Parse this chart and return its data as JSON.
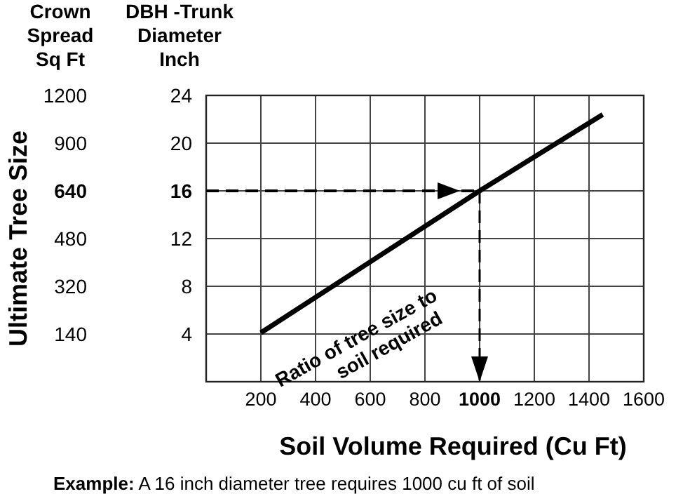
{
  "chart_data": {
    "type": "line",
    "xlabel": "Soil Volume Required (Cu Ft)",
    "ylabel": "DBH -Trunk\nDiameter\nInch",
    "xlim": [
      0,
      1600
    ],
    "xticks": [
      200,
      400,
      600,
      800,
      1000,
      1200,
      1400,
      1600
    ],
    "ylim": [
      0,
      24
    ],
    "yticks": [
      4,
      8,
      12,
      16,
      20,
      24
    ],
    "grid": true,
    "x": [
      200,
      1000,
      1450
    ],
    "series": [
      {
        "color": "#000000",
        "values": [
          4.1,
          16,
          22.4
        ]
      }
    ],
    "ref_lines": [
      {
        "axis": "y",
        "value": 16,
        "line_style": "dashed",
        "color": "#000000"
      },
      {
        "axis": "x",
        "value": 1000,
        "line_style": "dashed",
        "color": "#000000"
      }
    ],
    "annotations": [
      "Ultimate Tree Size",
      "Ratio of tree size to\nsoil required",
      "Example:  A 16 inch diameter tree requires 1000 cu ft of soil",
      "Crown\nSpread\nSq Ft",
      "140",
      "320",
      "480",
      "640",
      "900",
      "1200"
    ]
  }
}
